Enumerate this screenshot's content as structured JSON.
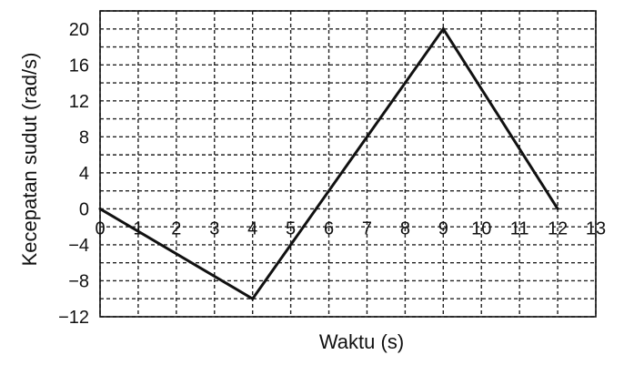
{
  "chart_data": {
    "type": "line",
    "title": "",
    "xlabel": "Waktu (s)",
    "ylabel": "Kecepatan sudut (rad/s)",
    "xlim": [
      0,
      13
    ],
    "ylim": [
      -12,
      22
    ],
    "x_ticks": [
      0,
      1,
      2,
      3,
      4,
      5,
      6,
      7,
      8,
      9,
      10,
      11,
      12,
      13
    ],
    "x_tick_labels": [
      "0",
      "1",
      "2",
      "3",
      "4",
      "5",
      "6",
      "7",
      "8",
      "9",
      "10",
      "11",
      "12",
      "13"
    ],
    "y_ticks": [
      -12,
      -8,
      -4,
      0,
      4,
      8,
      12,
      16,
      20
    ],
    "y_tick_labels": [
      "−12",
      "−8",
      "−4",
      "0",
      "4",
      "8",
      "12",
      "16",
      "20"
    ],
    "grid": true,
    "series": [
      {
        "x": [
          0,
          4,
          9,
          12
        ],
        "values": [
          0,
          -10,
          20,
          0
        ]
      }
    ]
  }
}
